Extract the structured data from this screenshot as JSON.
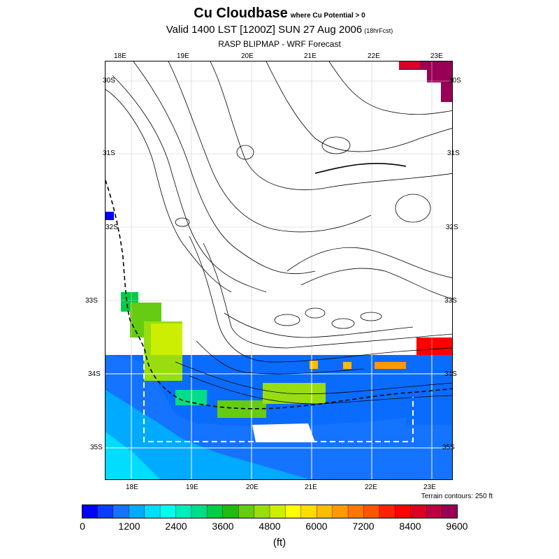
{
  "header": {
    "title": "Cu Cloudbase",
    "condition": "where Cu Potential > 0",
    "valid": "Valid 1400 LST [1200Z] SUN 27 Aug 2006",
    "forecast_hour": "(18hrFcst)",
    "source": "RASP BLIPMAP - WRF Forecast"
  },
  "map": {
    "lon_labels": [
      "18E",
      "19E",
      "20E",
      "21E",
      "22E",
      "23E"
    ],
    "lat_labels": [
      "30S",
      "31S",
      "32S",
      "33S",
      "34S",
      "35S"
    ],
    "terrain_note": "Terrain contours: 250 ft"
  },
  "colorbar": {
    "unit": "(ft)",
    "tick_labels": [
      "0",
      "1200",
      "2400",
      "3600",
      "4800",
      "6000",
      "7200",
      "8400",
      "9600"
    ],
    "colors": [
      "#0000ff",
      "#0a3cff",
      "#1473ff",
      "#00aaff",
      "#00ddff",
      "#00ffee",
      "#00eebb",
      "#00dd88",
      "#00cc44",
      "#22bb11",
      "#66cc11",
      "#99dd11",
      "#ccee00",
      "#ffff00",
      "#ffdd00",
      "#ffbb00",
      "#ff9900",
      "#ff7700",
      "#ff5500",
      "#ff2200",
      "#ff0000",
      "#dd0022",
      "#bb0044",
      "#990055"
    ]
  }
}
